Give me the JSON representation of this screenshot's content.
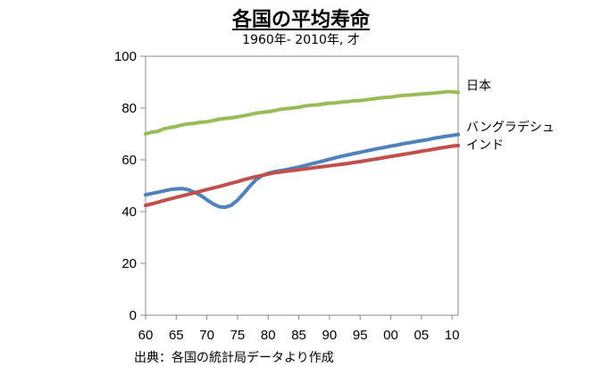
{
  "chart_data": {
    "type": "line",
    "title": "各国の平均寿命",
    "subtitle": "1960年- 2010年, 才",
    "source": "出典：各国の統計局データより作成",
    "xlabel": "",
    "ylabel": "",
    "xlim": [
      1960,
      2011
    ],
    "ylim": [
      0,
      100
    ],
    "y_ticks": [
      0,
      20,
      40,
      60,
      80,
      100
    ],
    "x_ticks": [
      {
        "value": 1960,
        "label": "60"
      },
      {
        "value": 1965,
        "label": "65"
      },
      {
        "value": 1970,
        "label": "70"
      },
      {
        "value": 1975,
        "label": "75"
      },
      {
        "value": 1980,
        "label": "80"
      },
      {
        "value": 1985,
        "label": "85"
      },
      {
        "value": 1990,
        "label": "90"
      },
      {
        "value": 1995,
        "label": "95"
      },
      {
        "value": 2000,
        "label": "00"
      },
      {
        "value": 2005,
        "label": "05"
      },
      {
        "value": 2010,
        "label": "10"
      }
    ],
    "grid": false,
    "legend": "inline-right",
    "x": [
      1960,
      1961,
      1962,
      1963,
      1964,
      1965,
      1966,
      1967,
      1968,
      1969,
      1970,
      1971,
      1972,
      1973,
      1974,
      1975,
      1976,
      1977,
      1978,
      1979,
      1980,
      1981,
      1982,
      1983,
      1984,
      1985,
      1986,
      1987,
      1988,
      1989,
      1990,
      1991,
      1992,
      1993,
      1994,
      1995,
      1996,
      1997,
      1998,
      1999,
      2000,
      2001,
      2002,
      2003,
      2004,
      2005,
      2006,
      2007,
      2008,
      2009,
      2010,
      2011
    ],
    "series": [
      {
        "name": "日本",
        "color": "#9bbb59",
        "values": [
          70.0,
          70.7,
          71.0,
          72.0,
          72.5,
          72.9,
          73.5,
          73.9,
          74.1,
          74.5,
          74.7,
          75.2,
          75.7,
          76.0,
          76.2,
          76.6,
          77.0,
          77.5,
          78.0,
          78.3,
          78.6,
          79.0,
          79.5,
          79.8,
          80.0,
          80.3,
          80.8,
          81.1,
          81.2,
          81.6,
          81.9,
          82.0,
          82.3,
          82.5,
          82.8,
          82.9,
          83.2,
          83.5,
          83.8,
          84.1,
          84.2,
          84.6,
          84.9,
          85.0,
          85.2,
          85.4,
          85.6,
          85.8,
          86.0,
          86.3,
          86.3,
          86.0
        ]
      },
      {
        "name": "バングラデシュ",
        "color": "#4f81bd",
        "values": [
          46.5,
          47.0,
          47.5,
          48.0,
          48.5,
          48.8,
          48.9,
          48.4,
          47.5,
          46.2,
          44.6,
          43.0,
          41.9,
          41.7,
          42.5,
          44.4,
          47.0,
          49.8,
          52.3,
          53.9,
          54.8,
          55.4,
          55.8,
          56.2,
          56.7,
          57.2,
          57.8,
          58.4,
          59.0,
          59.6,
          60.2,
          60.8,
          61.4,
          61.9,
          62.4,
          62.9,
          63.4,
          63.9,
          64.4,
          64.8,
          65.3,
          65.7,
          66.2,
          66.6,
          67.0,
          67.4,
          67.8,
          68.3,
          68.7,
          69.1,
          69.4,
          69.8
        ]
      },
      {
        "name": "インド",
        "color": "#c0504d",
        "values": [
          42.4,
          43.0,
          43.6,
          44.3,
          44.9,
          45.5,
          46.1,
          46.7,
          47.3,
          47.9,
          48.5,
          49.1,
          49.7,
          50.3,
          51.0,
          51.6,
          52.3,
          52.9,
          53.5,
          54.0,
          54.5,
          55.0,
          55.3,
          55.6,
          55.9,
          56.2,
          56.5,
          56.8,
          57.1,
          57.4,
          57.7,
          58.0,
          58.3,
          58.6,
          59.0,
          59.3,
          59.7,
          60.1,
          60.5,
          60.9,
          61.3,
          61.7,
          62.1,
          62.5,
          62.9,
          63.3,
          63.7,
          64.1,
          64.5,
          64.9,
          65.3,
          65.5
        ]
      }
    ],
    "series_label_positions": [
      {
        "name": "日本",
        "y_value": 88.8
      },
      {
        "name": "バングラデシュ",
        "y_value": 72.8
      },
      {
        "name": "インド",
        "y_value": 65.8
      }
    ]
  }
}
